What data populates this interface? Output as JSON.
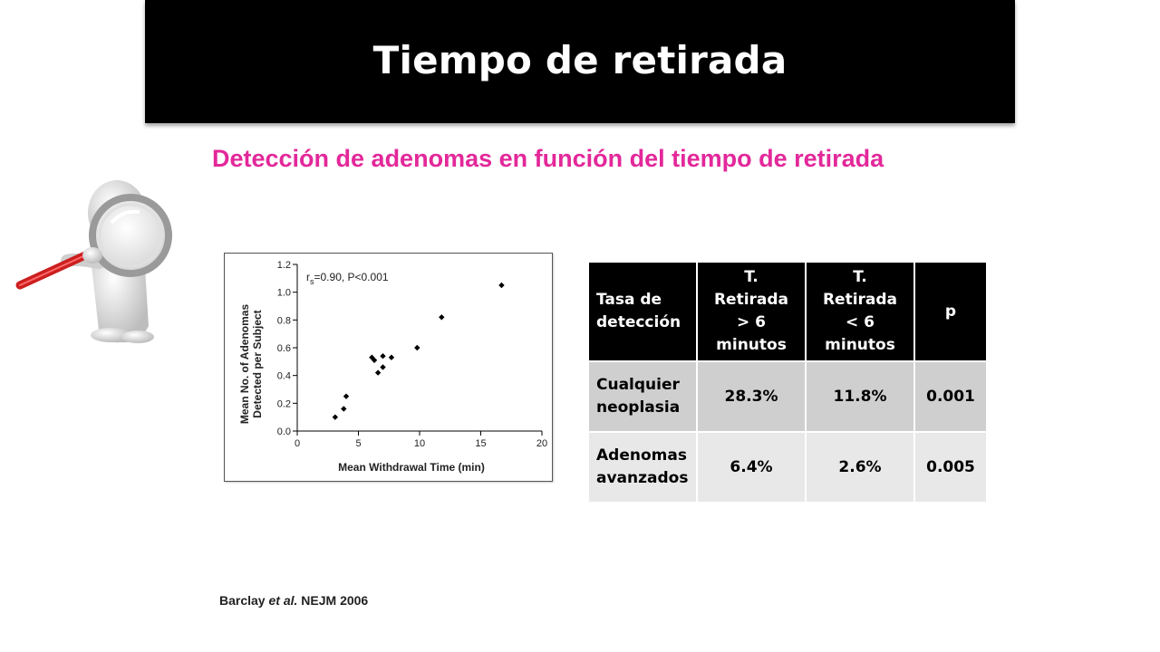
{
  "slide": {
    "title": "Tiempo de retirada",
    "subtitle": "Detección de adenomas en función del tiempo de retirada"
  },
  "citation": {
    "author": "Barclay",
    "etal": "et al.",
    "source": "NEJM 2006"
  },
  "chart_data": {
    "type": "scatter",
    "annotation_main": "r",
    "annotation_sub": "s",
    "annotation_rest": "=0.90, P<0.001",
    "xlabel": "Mean Withdrawal Time (min)",
    "ylabel_line1": "Mean No. of Adenomas",
    "ylabel_line2": "Detected per Subject",
    "xlim": [
      0,
      20
    ],
    "ylim": [
      0,
      1.2
    ],
    "xticks": [
      0,
      5,
      10,
      15,
      20
    ],
    "yticks": [
      0.0,
      0.2,
      0.4,
      0.6,
      0.8,
      1.0,
      1.2
    ],
    "ytick_labels": [
      "0.0",
      "0.2",
      "0.4",
      "0.6",
      "0.8",
      "1.0",
      "1.2"
    ],
    "points": [
      {
        "x": 3.1,
        "y": 0.1
      },
      {
        "x": 3.8,
        "y": 0.16
      },
      {
        "x": 4.0,
        "y": 0.25
      },
      {
        "x": 6.1,
        "y": 0.53
      },
      {
        "x": 6.3,
        "y": 0.51
      },
      {
        "x": 6.6,
        "y": 0.42
      },
      {
        "x": 7.0,
        "y": 0.54
      },
      {
        "x": 7.0,
        "y": 0.46
      },
      {
        "x": 7.7,
        "y": 0.53
      },
      {
        "x": 9.8,
        "y": 0.6
      },
      {
        "x": 11.8,
        "y": 0.82
      },
      {
        "x": 16.7,
        "y": 1.05
      }
    ]
  },
  "table": {
    "headers": [
      [
        "Tasa de",
        "detección"
      ],
      [
        "T. Retirada",
        "> 6",
        "minutos"
      ],
      [
        "T. Retirada",
        "< 6",
        "minutos"
      ],
      [
        "p"
      ]
    ],
    "rows": [
      {
        "label": [
          "Cualquier",
          "neoplasia"
        ],
        "gt6": "28.3%",
        "lt6": "11.8%",
        "p": "0.001"
      },
      {
        "label": [
          "Adenomas",
          "avanzados"
        ],
        "gt6": "6.4%",
        "lt6": "2.6%",
        "p": "0.005"
      }
    ]
  },
  "illustration": {
    "icon": "person-with-magnifying-glass-icon",
    "colors": {
      "handle": "#cc1f1f",
      "figure": "#e6e6e6"
    }
  }
}
